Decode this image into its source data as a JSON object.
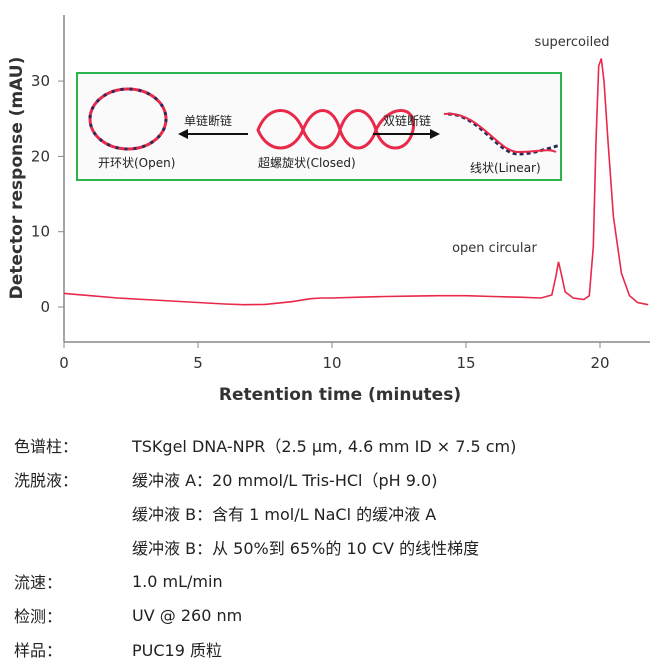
{
  "chart_data": {
    "type": "line",
    "xlabel": "Retention time (minutes)",
    "ylabel": "Detector response (mAU)",
    "xlim": [
      0,
      22
    ],
    "ylim": [
      -5,
      39
    ],
    "xticks": [
      0,
      5,
      10,
      15,
      20
    ],
    "yticks": [
      0,
      10,
      20,
      30
    ],
    "grid": false,
    "series": [
      {
        "color": "#e8294a",
        "x": [
          0,
          1,
          2,
          3,
          4,
          5,
          6,
          6.7,
          7.5,
          8.5,
          9.2,
          9.6,
          10,
          11,
          12,
          13,
          14,
          15,
          16,
          17,
          17.8,
          18.2,
          18.35,
          18.45,
          18.55,
          18.7,
          19,
          19.4,
          19.6,
          19.75,
          19.85,
          19.95,
          20.05,
          20.15,
          20.3,
          20.5,
          20.8,
          21.1,
          21.4,
          21.8
        ],
        "y": [
          1.8,
          1.5,
          1.2,
          1,
          0.8,
          0.6,
          0.4,
          0.3,
          0.35,
          0.7,
          1.1,
          1.2,
          1.2,
          1.3,
          1.4,
          1.45,
          1.5,
          1.5,
          1.4,
          1.3,
          1.2,
          1.6,
          4,
          6,
          4.5,
          2,
          1.2,
          1,
          1.5,
          8,
          22,
          32,
          33,
          30,
          22,
          12,
          4.5,
          1.5,
          0.6,
          0.3
        ]
      }
    ],
    "annotations": [
      {
        "text": "supercoiled",
        "x": 20
      },
      {
        "text": "open circular",
        "x": 18.45
      }
    ]
  },
  "inset": {
    "open": "开环状(Open)",
    "closed": "超螺旋状(Closed)",
    "linear": "线状(Linear)",
    "single_break": "单链断链",
    "double_break": "双链断链"
  },
  "conditions": [
    {
      "k": "色谱柱：",
      "v": [
        "TSKgel DNA-NPR（2.5 μm, 4.6 mm ID × 7.5 cm)"
      ]
    },
    {
      "k": "洗脱液：",
      "v": [
        "缓冲液 A：20 mmol/L Tris-HCl（pH 9.0)",
        "缓冲液 B：含有 1 mol/L NaCl 的缓冲液 A",
        "缓冲液 B：从 50%到 65%的 10 CV 的线性梯度"
      ]
    },
    {
      "k": "流速：",
      "v": [
        "1.0 mL/min"
      ]
    },
    {
      "k": "检测：",
      "v": [
        "UV @ 260 nm"
      ]
    },
    {
      "k": "样品：",
      "v": [
        "PUC19 质粒"
      ]
    }
  ]
}
